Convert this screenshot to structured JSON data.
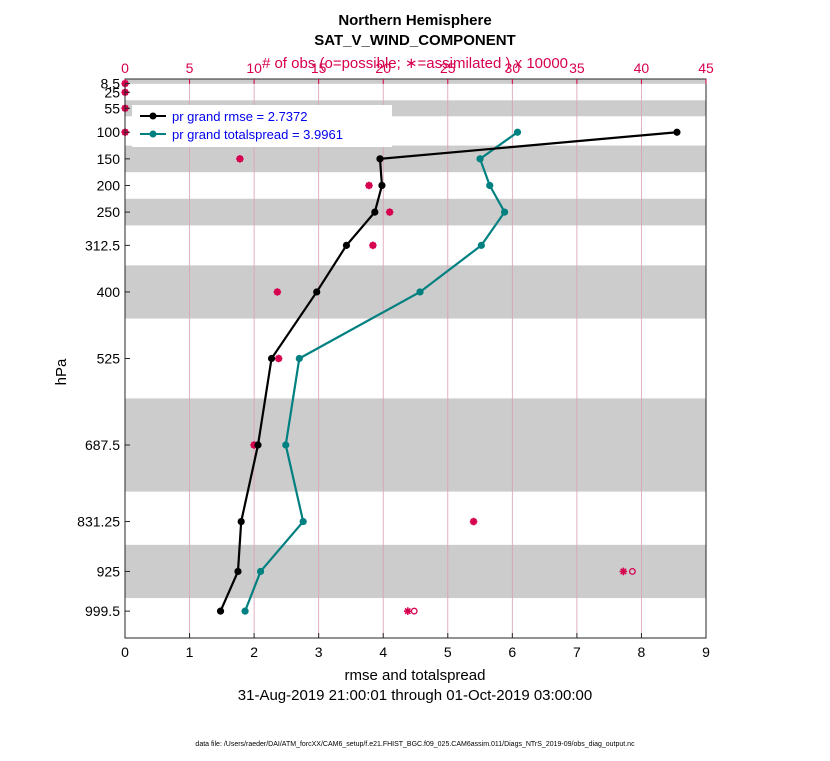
{
  "chart_data": {
    "type": "line",
    "title": "Northern Hemisphere",
    "subtitle": "SAT_V_WIND_COMPONENT",
    "top_axis_label": "# of obs (o=possible; ∗=assimilated ) x 10000",
    "xlabel": "rmse and totalspread",
    "ylabel": "hPa",
    "date_range": "31-Aug-2019 21:00:01 through 01-Oct-2019 03:00:00",
    "footer": "data file: /Users/raeder/DAI/ATM_forcXX/CAM6_setup/f.e21.FHIST_BGC.f09_025.CAM6assim.011/Diags_NTrS_2019-09/obs_diag_output.nc",
    "xlim": [
      0,
      9
    ],
    "xticks": [
      "0",
      "1",
      "2",
      "3",
      "4",
      "5",
      "6",
      "7",
      "8",
      "9"
    ],
    "top_xlim": [
      0,
      45
    ],
    "top_xticks": [
      "0",
      "5",
      "10",
      "15",
      "20",
      "25",
      "30",
      "35",
      "40",
      "45"
    ],
    "levels": [
      8.5,
      25,
      55,
      100,
      150,
      200,
      250,
      312.5,
      400,
      525,
      687.5,
      831.25,
      925,
      999.5
    ],
    "level_labels": [
      "8.5",
      "25",
      "55",
      "100",
      "150",
      "200",
      "250",
      "312.5",
      "400",
      "525",
      "687.5",
      "831.25",
      "925",
      "999.5"
    ],
    "shaded_bands": [
      [
        0,
        9
      ],
      [
        40,
        70
      ],
      [
        125,
        175
      ],
      [
        225,
        275
      ],
      [
        350,
        450
      ],
      [
        600,
        775
      ],
      [
        875,
        975
      ]
    ],
    "series": [
      {
        "name": "rmse",
        "legend": "pr grand rmse = 2.7372",
        "color": "#000000",
        "levels": [
          100,
          150,
          200,
          250,
          312.5,
          400,
          525,
          687.5,
          831.25,
          925,
          999.5
        ],
        "values": [
          8.55,
          3.95,
          3.98,
          3.87,
          3.43,
          2.97,
          2.27,
          2.06,
          1.8,
          1.75,
          1.48
        ]
      },
      {
        "name": "totalspread",
        "legend": "pr grand totalspread = 3.9961",
        "color": "#008080",
        "levels": [
          100,
          150,
          200,
          250,
          312.5,
          400,
          525,
          687.5,
          831.25,
          925,
          999.5
        ],
        "values": [
          6.08,
          5.5,
          5.65,
          5.88,
          5.52,
          4.57,
          2.7,
          2.49,
          2.76,
          2.1,
          1.86
        ]
      }
    ],
    "obs_counts": {
      "color": "#d6004f",
      "levels": [
        8.5,
        25,
        55,
        100,
        150,
        200,
        250,
        312.5,
        400,
        525,
        687.5,
        831.25,
        925,
        999.5
      ],
      "possible": [
        0.01,
        0.01,
        0.01,
        0.01,
        8.9,
        18.9,
        20.5,
        19.2,
        11.8,
        11.9,
        10.0,
        27.0,
        39.3,
        22.4
      ],
      "assimilated": [
        0.01,
        0.01,
        0.01,
        0.01,
        8.9,
        18.9,
        20.5,
        19.2,
        11.8,
        11.9,
        10.0,
        27.0,
        38.6,
        21.9
      ]
    }
  }
}
